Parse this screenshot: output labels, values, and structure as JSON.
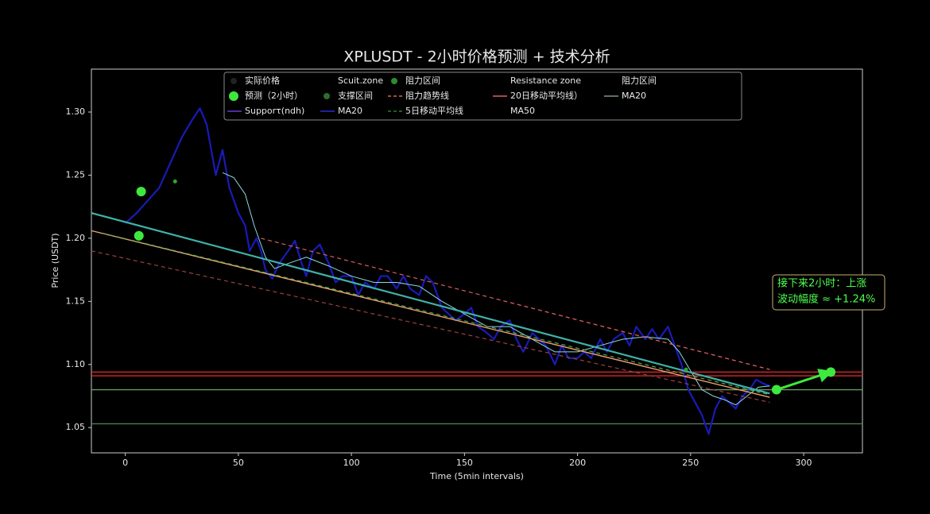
{
  "chart_data": {
    "type": "line",
    "title": "XPLUSDT - 2小时价格预测 + 技术分析",
    "x_label": "Time (5min intervals)",
    "y_label": "Price (USDT)",
    "xlim": [
      -15,
      326
    ],
    "ylim": [
      1.03,
      1.334
    ],
    "xticks": [
      0,
      50,
      100,
      150,
      200,
      250,
      300
    ],
    "yticks": [
      1.05,
      {
        "value": 1.1,
        "label": "1.10"
      },
      1.15,
      {
        "value": 1.2,
        "label": "1.20"
      },
      1.25,
      {
        "value": 1.3,
        "label": "1.30"
      }
    ],
    "hlines": [
      {
        "value": 1.094,
        "color": "#d62728"
      },
      {
        "value": 1.091,
        "color": "#d62728"
      },
      {
        "value": 1.08,
        "color": "#6a9a6a"
      },
      {
        "value": 1.053,
        "color": "#4f7a5a"
      }
    ],
    "series": [
      {
        "style": "line",
        "color": "#1a1ab8",
        "width": 2.2,
        "x": [
          0,
          5,
          10,
          15,
          20,
          25,
          30,
          33,
          36,
          40,
          43,
          46,
          50,
          53,
          55,
          58,
          60,
          62,
          65,
          68,
          72,
          75,
          78,
          80,
          83,
          86,
          90,
          93,
          96,
          100,
          103,
          106,
          110,
          113,
          116,
          120,
          123,
          126,
          130,
          133,
          136,
          140,
          143,
          146,
          150,
          153,
          156,
          160,
          163,
          166,
          170,
          173,
          176,
          180,
          183,
          186,
          190,
          193,
          196,
          200,
          203,
          206,
          210,
          213,
          216,
          220,
          223,
          226,
          230,
          233,
          236,
          240,
          243,
          246,
          249,
          252,
          255,
          258,
          261,
          264,
          267,
          270,
          273,
          276,
          279,
          282,
          285
        ],
        "values": [
          1.212,
          1.22,
          1.23,
          1.24,
          1.26,
          1.28,
          1.295,
          1.303,
          1.29,
          1.25,
          1.27,
          1.24,
          1.22,
          1.21,
          1.19,
          1.2,
          1.19,
          1.175,
          1.168,
          1.18,
          1.19,
          1.198,
          1.18,
          1.17,
          1.19,
          1.195,
          1.18,
          1.165,
          1.17,
          1.17,
          1.155,
          1.165,
          1.16,
          1.17,
          1.17,
          1.16,
          1.17,
          1.16,
          1.155,
          1.17,
          1.165,
          1.145,
          1.14,
          1.135,
          1.14,
          1.145,
          1.13,
          1.125,
          1.12,
          1.13,
          1.135,
          1.12,
          1.11,
          1.125,
          1.12,
          1.115,
          1.1,
          1.115,
          1.105,
          1.105,
          1.11,
          1.105,
          1.12,
          1.11,
          1.12,
          1.125,
          1.115,
          1.13,
          1.12,
          1.128,
          1.12,
          1.13,
          1.115,
          1.1,
          1.08,
          1.07,
          1.06,
          1.045,
          1.065,
          1.075,
          1.07,
          1.065,
          1.075,
          1.08,
          1.088,
          1.085,
          1.083
        ]
      },
      {
        "style": "line",
        "color": "#8fd8e0",
        "width": 1,
        "x": [
          43,
          48,
          53,
          57,
          62,
          66,
          72,
          80,
          90,
          100,
          110,
          120,
          130,
          140,
          150,
          160,
          170,
          180,
          190,
          200,
          210,
          220,
          230,
          240,
          245,
          250,
          255,
          260,
          265,
          270,
          275,
          280,
          285
        ],
        "values": [
          1.252,
          1.248,
          1.235,
          1.21,
          1.185,
          1.176,
          1.18,
          1.185,
          1.178,
          1.17,
          1.165,
          1.165,
          1.162,
          1.15,
          1.14,
          1.13,
          1.13,
          1.12,
          1.11,
          1.11,
          1.115,
          1.12,
          1.122,
          1.12,
          1.11,
          1.095,
          1.08,
          1.075,
          1.072,
          1.068,
          1.075,
          1.082,
          1.083
        ]
      },
      {
        "style": "line",
        "color": "#40b0a8",
        "width": 2.2,
        "x": [
          -15,
          285
        ],
        "values": [
          1.22,
          1.077
        ]
      },
      {
        "style": "line",
        "color": "#f0a070",
        "width": 1.4,
        "x": [
          -15,
          285
        ],
        "values": [
          1.206,
          1.074
        ]
      },
      {
        "style": "dashed",
        "color": "#4caf50",
        "width": 1.2,
        "x": [
          -10,
          285
        ],
        "values": [
          1.204,
          1.076
        ]
      },
      {
        "style": "dashed",
        "color": "#a04040",
        "width": 1.2,
        "x": [
          -15,
          285
        ],
        "values": [
          1.19,
          1.07
        ]
      },
      {
        "style": "dashed",
        "color": "#e06060",
        "width": 1.2,
        "x": [
          60,
          285
        ],
        "values": [
          1.2,
          1.096
        ]
      },
      {
        "style": "arrow",
        "color": "#3ee83e",
        "width": 3,
        "x": [
          288,
          310
        ],
        "values": [
          1.08,
          1.093
        ]
      },
      {
        "style": "markers",
        "color": "#3ee83e",
        "size": 6,
        "x": [
          7,
          6,
          288,
          312
        ],
        "values": [
          1.237,
          1.202,
          1.08,
          1.094
        ]
      },
      {
        "style": "markers",
        "color": "#2ea82e",
        "size": 2.5,
        "x": [
          22,
          248
        ],
        "values": [
          1.245,
          1.096
        ]
      }
    ],
    "legend": [
      {
        "label": "实际价格",
        "marker": "dot",
        "color": "#222222"
      },
      {
        "label": "Scuit.zone",
        "marker": "none",
        "color": "#000000"
      },
      {
        "label": "阻力区间",
        "marker": "dot",
        "color": "#2e8b2e"
      },
      {
        "label": "Resistance zone",
        "marker": "none",
        "color": "#000000"
      },
      {
        "label": "阻力区间",
        "marker": "none",
        "color": "#000000"
      },
      {
        "label": "预测（2小时）",
        "marker": "dot",
        "color": "#3ee83e"
      },
      {
        "label": "支撑区间",
        "marker": "dot",
        "color": "#2e6b2e"
      },
      {
        "label": "阻力趋势线",
        "marker": "dashed",
        "color": "#e06060"
      },
      {
        "label": "20日移动平均线）",
        "marker": "line",
        "color": "#e06060"
      },
      {
        "label": "MA20",
        "marker": "line",
        "color": "#7a9a7a"
      },
      {
        "label": "Supporτ(ndh)",
        "marker": "line",
        "color": "#6a3ad0"
      },
      {
        "label": "MA20",
        "marker": "line",
        "color": "#2a2ad0"
      },
      {
        "label": "5日移动平均线",
        "marker": "dashed",
        "color": "#2e7a2e"
      },
      {
        "label": "MA50",
        "marker": "none",
        "color": "#000000"
      }
    ],
    "annotation": {
      "lines": [
        "接下来2小时：上涨",
        "波动幅度 ≈ +1.24%"
      ],
      "color": "#4cff4c",
      "border": "#c8b070"
    }
  }
}
